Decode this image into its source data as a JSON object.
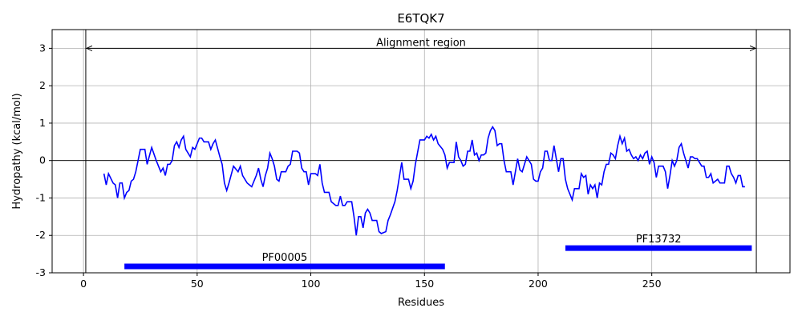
{
  "chart_data": {
    "type": "line",
    "title": "E6TQK7",
    "xlabel": "Residues",
    "ylabel": "Hydropathy (kcal/mol)",
    "xlim": [
      -13.8,
      310.8
    ],
    "ylim": [
      -3,
      3.5
    ],
    "xticks": [
      0,
      50,
      100,
      150,
      200,
      250
    ],
    "yticks": [
      -3,
      -2,
      -1,
      0,
      1,
      2,
      3
    ],
    "grid": true,
    "hline": 0,
    "series": [
      {
        "color": "#0000ff",
        "x": [
          9,
          10,
          11,
          13,
          14,
          15,
          16,
          17,
          18,
          19,
          20,
          21,
          22,
          23,
          24,
          25,
          27,
          28,
          30,
          32,
          34,
          35,
          36,
          37,
          38,
          39,
          40,
          41,
          42,
          43,
          44,
          45,
          46,
          47,
          48,
          49,
          50,
          51,
          52,
          53,
          55,
          56,
          57,
          58,
          60,
          61,
          62,
          63,
          64,
          66,
          68,
          69,
          70,
          72,
          73,
          74,
          76,
          77,
          78,
          79,
          80,
          81,
          82,
          83,
          84,
          85,
          86,
          87,
          89,
          90,
          91,
          92,
          94,
          95,
          96,
          97,
          98,
          99,
          100,
          102,
          103,
          104,
          105,
          106,
          108,
          109,
          110,
          111,
          112,
          113,
          114,
          115,
          116,
          118,
          119,
          120,
          121,
          122,
          123,
          124,
          125,
          126,
          127,
          129,
          130,
          131,
          133,
          134,
          135,
          137,
          138,
          140,
          141,
          143,
          144,
          145,
          146,
          148,
          150,
          151,
          152,
          153,
          154,
          155,
          156,
          158,
          159,
          160,
          161,
          163,
          164,
          165,
          166,
          167,
          168,
          169,
          170,
          171,
          172,
          173,
          174,
          175,
          176,
          177,
          178,
          179,
          180,
          181,
          182,
          183,
          184,
          185,
          186,
          188,
          189,
          190,
          191,
          192,
          193,
          194,
          195,
          196,
          197,
          198,
          199,
          200,
          201,
          202,
          203,
          204,
          205,
          206,
          207,
          208,
          209,
          210,
          211,
          212,
          213,
          215,
          216,
          218,
          219,
          220,
          221,
          222,
          223,
          224,
          225,
          226,
          227,
          228,
          229,
          230,
          231,
          232,
          233,
          234,
          235,
          236,
          237,
          238,
          239,
          240,
          241,
          242,
          243,
          244,
          245,
          246,
          247,
          248,
          249,
          250,
          251,
          252,
          253,
          254,
          255,
          256,
          257,
          258,
          259,
          260,
          261,
          262,
          263,
          264,
          265,
          266,
          267,
          268,
          269,
          270,
          271,
          272,
          273,
          274,
          275,
          276,
          277,
          278,
          279,
          280,
          281,
          282,
          283,
          284,
          285,
          286,
          287,
          288,
          289,
          290,
          291
        ],
        "values": [
          -0.35,
          -0.65,
          -0.35,
          -0.6,
          -0.65,
          -1.0,
          -0.6,
          -0.6,
          -1.0,
          -0.85,
          -0.8,
          -0.55,
          -0.5,
          -0.3,
          0.0,
          0.3,
          0.3,
          -0.1,
          0.35,
          0.0,
          -0.3,
          -0.2,
          -0.4,
          -0.1,
          -0.1,
          0.0,
          0.4,
          0.5,
          0.35,
          0.55,
          0.65,
          0.3,
          0.2,
          0.1,
          0.35,
          0.3,
          0.45,
          0.6,
          0.6,
          0.5,
          0.5,
          0.3,
          0.45,
          0.55,
          0.1,
          -0.1,
          -0.6,
          -0.8,
          -0.6,
          -0.15,
          -0.3,
          -0.15,
          -0.4,
          -0.6,
          -0.65,
          -0.7,
          -0.4,
          -0.2,
          -0.5,
          -0.7,
          -0.4,
          -0.2,
          0.2,
          0.05,
          -0.15,
          -0.5,
          -0.55,
          -0.3,
          -0.3,
          -0.15,
          -0.1,
          0.25,
          0.25,
          0.2,
          -0.2,
          -0.3,
          -0.3,
          -0.65,
          -0.35,
          -0.35,
          -0.4,
          -0.1,
          -0.6,
          -0.85,
          -0.85,
          -1.1,
          -1.15,
          -1.2,
          -1.2,
          -0.95,
          -1.2,
          -1.2,
          -1.1,
          -1.1,
          -1.5,
          -2.0,
          -1.5,
          -1.5,
          -1.8,
          -1.4,
          -1.3,
          -1.4,
          -1.6,
          -1.6,
          -1.9,
          -1.95,
          -1.9,
          -1.6,
          -1.45,
          -1.1,
          -0.8,
          -0.05,
          -0.5,
          -0.5,
          -0.75,
          -0.55,
          -0.1,
          0.55,
          0.55,
          0.65,
          0.6,
          0.7,
          0.55,
          0.65,
          0.45,
          0.3,
          0.15,
          -0.2,
          -0.05,
          -0.05,
          0.5,
          0.1,
          0.0,
          -0.15,
          -0.1,
          0.25,
          0.25,
          0.55,
          0.15,
          0.2,
          0.0,
          0.15,
          0.15,
          0.2,
          0.6,
          0.8,
          0.9,
          0.8,
          0.4,
          0.45,
          0.45,
          0.0,
          -0.3,
          -0.3,
          -0.65,
          -0.3,
          0.05,
          -0.25,
          -0.3,
          -0.1,
          0.1,
          0.0,
          -0.1,
          -0.5,
          -0.55,
          -0.55,
          -0.3,
          -0.2,
          0.25,
          0.25,
          0.0,
          0.0,
          0.4,
          0.05,
          -0.3,
          0.05,
          0.05,
          -0.5,
          -0.75,
          -1.05,
          -0.75,
          -0.75,
          -0.35,
          -0.45,
          -0.4,
          -0.9,
          -0.65,
          -0.75,
          -0.65,
          -1.0,
          -0.6,
          -0.65,
          -0.3,
          -0.1,
          -0.1,
          0.2,
          0.15,
          0.05,
          0.4,
          0.65,
          0.45,
          0.6,
          0.25,
          0.3,
          0.15,
          0.05,
          0.1,
          0.0,
          0.15,
          0.05,
          0.2,
          0.25,
          -0.1,
          0.1,
          -0.05,
          -0.45,
          -0.15,
          -0.15,
          -0.15,
          -0.3,
          -0.75,
          -0.4,
          0.0,
          -0.15,
          0.0,
          0.35,
          0.45,
          0.2,
          0.0,
          -0.2,
          0.1,
          0.1,
          0.05,
          0.05,
          -0.05,
          -0.15,
          -0.15,
          -0.45,
          -0.45,
          -0.35,
          -0.6,
          -0.55,
          -0.5,
          -0.6,
          -0.6,
          -0.6,
          -0.15,
          -0.15,
          -0.35,
          -0.45,
          -0.6,
          -0.4,
          -0.4,
          -0.7,
          -0.7
        ]
      }
    ],
    "region": {
      "label": "Alignment region",
      "start": 1,
      "end": 296,
      "y": 3
    },
    "domains": [
      {
        "name": "PF00005",
        "start": 18,
        "end": 159,
        "y": -2.83,
        "color": "#0000ff"
      },
      {
        "name": "PF13732",
        "start": 212,
        "end": 294,
        "y": -2.34,
        "color": "#0000ff"
      }
    ]
  }
}
